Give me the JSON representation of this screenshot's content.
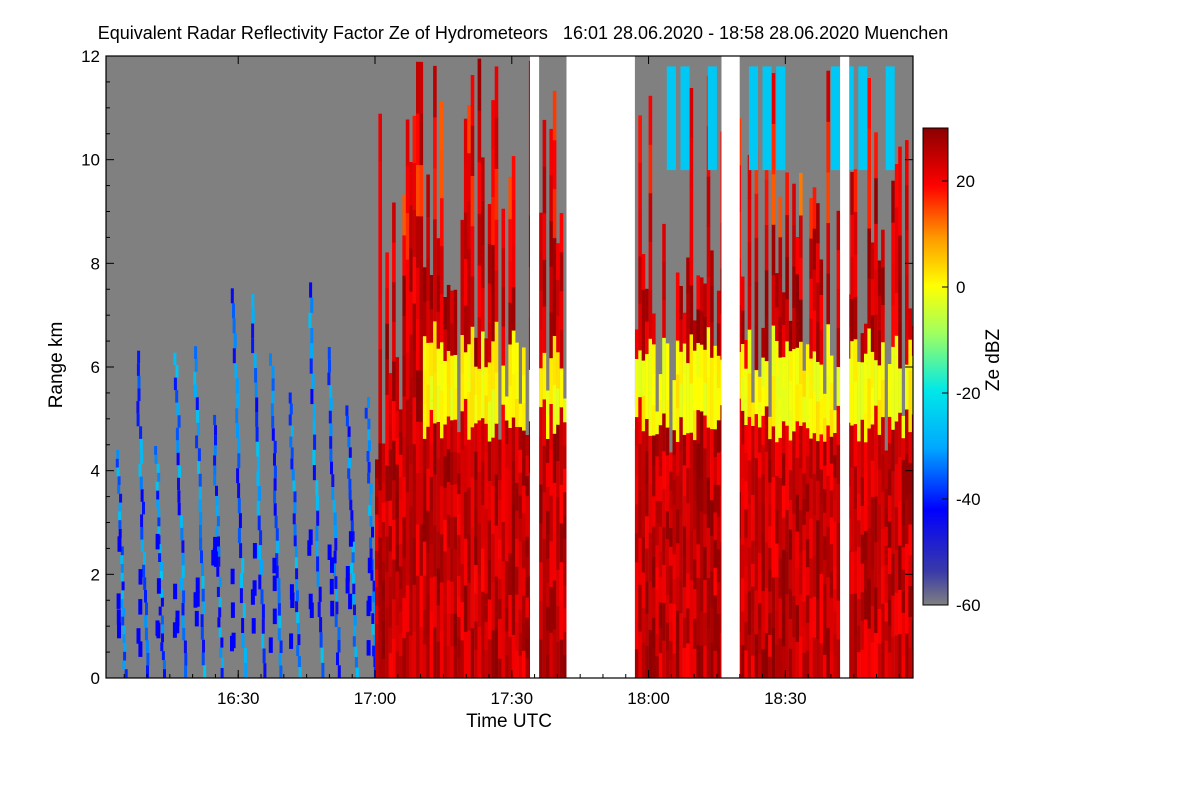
{
  "chart_data": {
    "type": "heatmap",
    "title": "Equivalent Radar Reflectivity Factor Ze of Hydrometeors   16:01 28.06.2020 - 18:58 28.06.2020 Muenchen",
    "xlabel": "Time UTC",
    "ylabel": "Range km",
    "xlim": [
      "16:01",
      "18:58"
    ],
    "ylim": [
      0,
      12
    ],
    "x_ticks": [
      "16:30",
      "17:00",
      "17:30",
      "18:00",
      "18:30"
    ],
    "y_ticks": [
      "0",
      "2",
      "4",
      "6",
      "8",
      "10",
      "12"
    ],
    "colorbar": {
      "label": "Ze dBZ",
      "range": [
        -60,
        30
      ],
      "ticks": [
        "20",
        "0",
        "-20",
        "-40",
        "-60"
      ]
    },
    "data_gaps": [
      [
        "17:34",
        "17:36"
      ],
      [
        "17:42",
        "17:57"
      ],
      [
        "18:16",
        "18:20"
      ],
      [
        "18:42",
        "18:44"
      ]
    ],
    "layers": [
      {
        "name": "weak cloud streaks",
        "time": [
          "16:01",
          "17:00"
        ],
        "range_km": [
          0,
          8
        ],
        "ze_dbz": [
          -45,
          -25
        ]
      },
      {
        "name": "convective rain",
        "time": [
          "17:00",
          "18:58"
        ],
        "range_km": [
          0,
          12
        ],
        "ze_dbz": [
          5,
          30
        ]
      },
      {
        "name": "melting layer / bright band",
        "time": [
          "17:10",
          "18:58"
        ],
        "range_km": [
          4.5,
          6.2
        ],
        "ze_dbz": [
          -5,
          5
        ]
      },
      {
        "name": "high ice cloud",
        "time": [
          "17:58",
          "18:58"
        ],
        "range_km": [
          9.8,
          11.8
        ],
        "ze_dbz": [
          -30,
          -20
        ]
      }
    ]
  }
}
